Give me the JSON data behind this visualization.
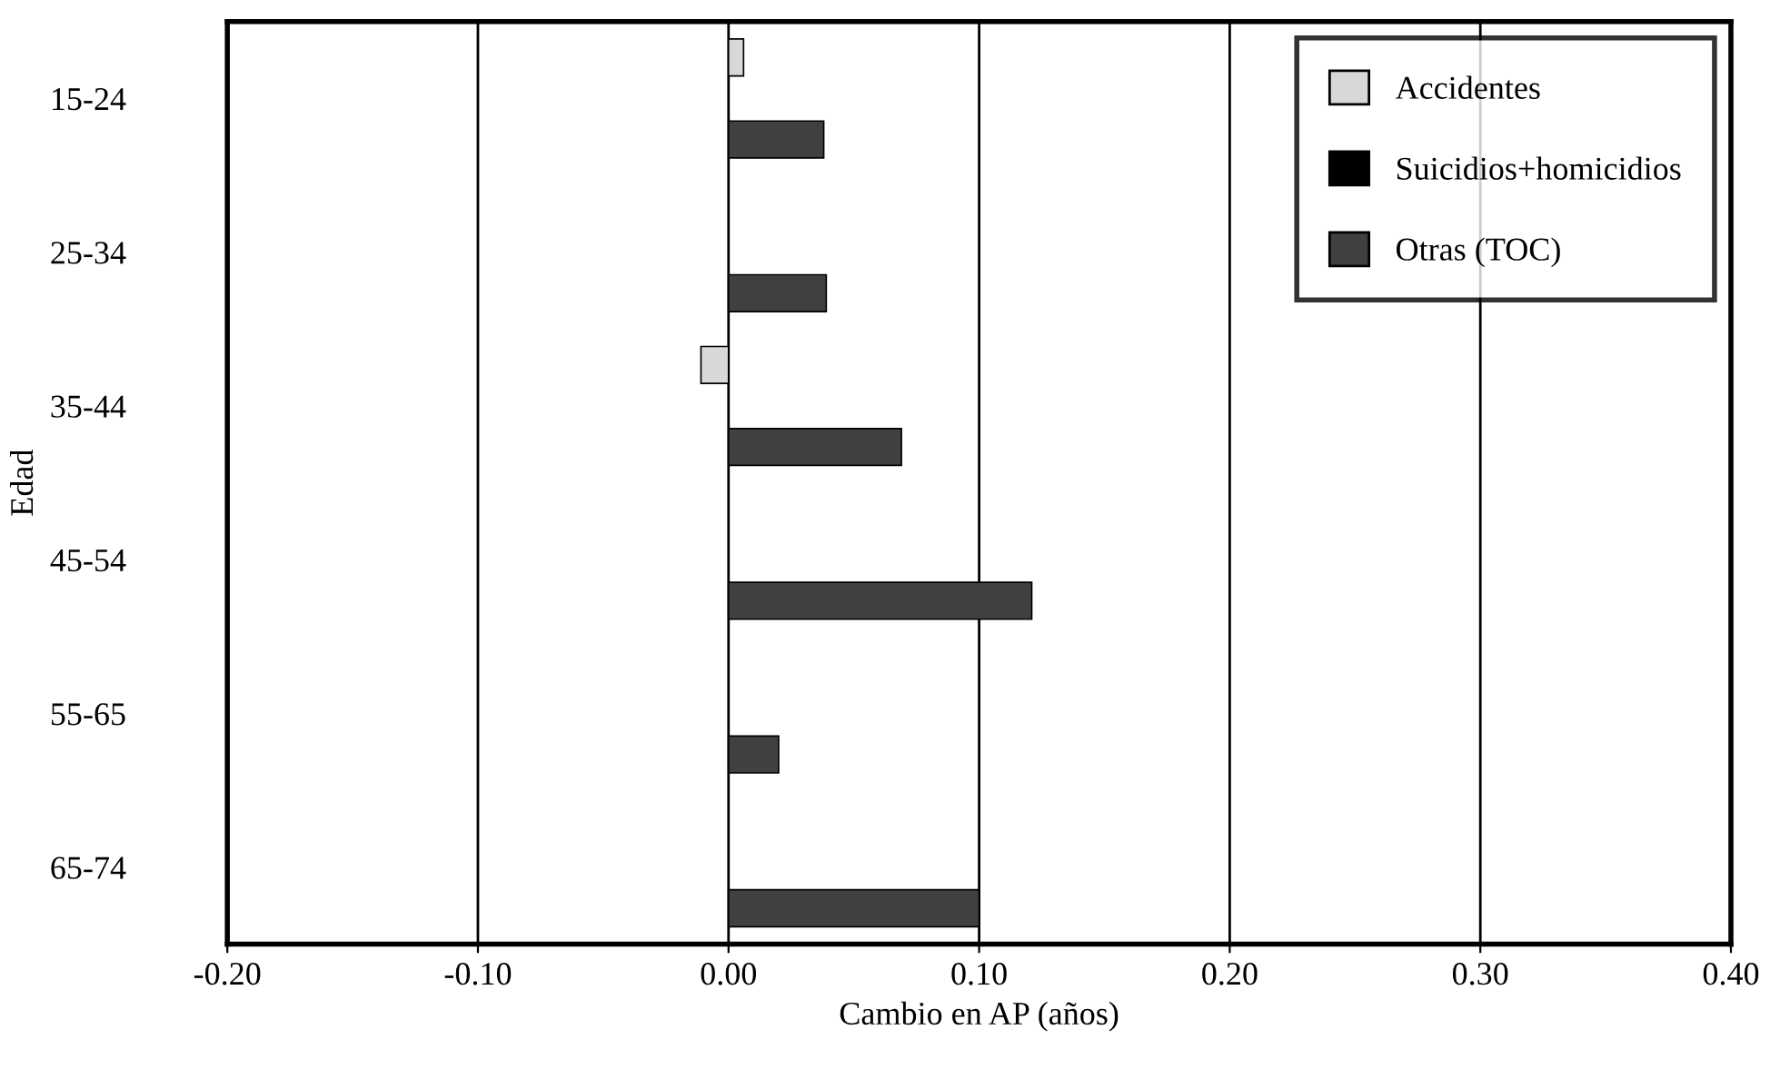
{
  "chart_data": {
    "type": "bar",
    "orientation": "horizontal",
    "xlabel": "Cambio en AP (años)",
    "ylabel": "Edad",
    "categories": [
      "15-24",
      "25-34",
      "35-44",
      "45-54",
      "55-65",
      "65-74"
    ],
    "series": [
      {
        "name": "Accidentes",
        "color": "#d8d8d8",
        "values": [
          0.006,
          null,
          -0.011,
          null,
          null,
          null
        ]
      },
      {
        "name": "Suicidios+homicidios",
        "color": "#000000",
        "values": [
          null,
          null,
          null,
          null,
          null,
          null
        ]
      },
      {
        "name": "Otras (TOC)",
        "color": "#404040",
        "values": [
          0.038,
          0.039,
          0.069,
          0.121,
          0.02,
          0.1
        ]
      }
    ],
    "xlim": [
      -0.2,
      0.4
    ],
    "xticks": [
      {
        "value": -0.2,
        "label": "-0.20"
      },
      {
        "value": -0.1,
        "label": "-0.10"
      },
      {
        "value": 0,
        "label": "0.00"
      },
      {
        "value": 0.1,
        "label": "0.10"
      },
      {
        "value": 0.2,
        "label": "0.20"
      },
      {
        "value": 0.3,
        "label": "0.30"
      },
      {
        "value": 0.4,
        "label": "0.40"
      }
    ],
    "grid": "x",
    "legend": "top right"
  }
}
